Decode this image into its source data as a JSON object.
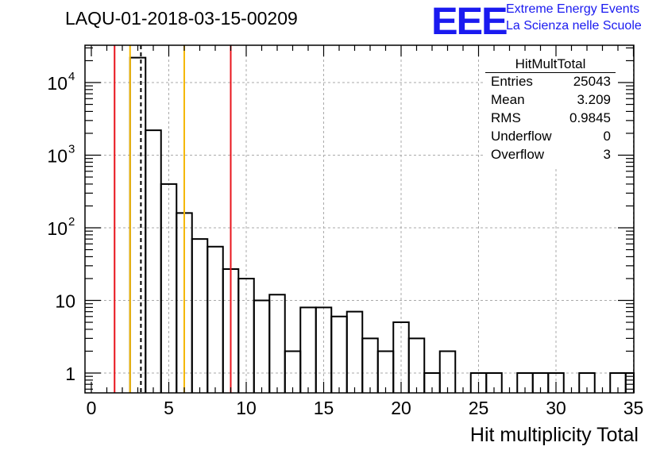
{
  "header": {
    "title": "LAQU-01-2018-03-15-00209"
  },
  "logo": {
    "mark": "EEE",
    "line1": "Extreme Energy Events",
    "line2": "La Scienza nelle Scuole"
  },
  "stats_box": {
    "title": "HitMultTotal",
    "rows": [
      {
        "key": "Entries",
        "value": "25043"
      },
      {
        "key": "Mean",
        "value": "3.209"
      },
      {
        "key": "RMS",
        "value": "0.9845"
      },
      {
        "key": "Underflow",
        "value": "0"
      },
      {
        "key": "Overflow",
        "value": "3"
      }
    ]
  },
  "colors": {
    "histogram": "#000000",
    "red_line": "#e8141c",
    "yellow_line": "#f5b800",
    "grid": "#aaaaaa",
    "logo": "#1a1af0"
  },
  "chart_data": {
    "type": "histogram",
    "title": "LAQU-01-2018-03-15-00209",
    "xlabel": "Hit multiplicity Total",
    "ylabel": "",
    "xlim": [
      0,
      35
    ],
    "ylog": true,
    "ylim": [
      0.5,
      40000
    ],
    "grid": true,
    "x_ticks": [
      0,
      5,
      10,
      15,
      20,
      25,
      30,
      35
    ],
    "y_ticks": [
      {
        "value": 1,
        "label": "1"
      },
      {
        "value": 10,
        "label": "10"
      },
      {
        "value": 100,
        "label": "10",
        "exp": "2"
      },
      {
        "value": 1000,
        "label": "10",
        "exp": "3"
      },
      {
        "value": 10000,
        "label": "10",
        "exp": "4"
      }
    ],
    "bins": [
      {
        "lo": 2.5,
        "hi": 3.5,
        "count": 22000
      },
      {
        "lo": 3.5,
        "hi": 4.5,
        "count": 2200
      },
      {
        "lo": 4.5,
        "hi": 5.5,
        "count": 400
      },
      {
        "lo": 5.5,
        "hi": 6.5,
        "count": 160
      },
      {
        "lo": 6.5,
        "hi": 7.5,
        "count": 70
      },
      {
        "lo": 7.5,
        "hi": 8.5,
        "count": 55
      },
      {
        "lo": 8.5,
        "hi": 9.5,
        "count": 27
      },
      {
        "lo": 9.5,
        "hi": 10.5,
        "count": 20
      },
      {
        "lo": 10.5,
        "hi": 11.5,
        "count": 10
      },
      {
        "lo": 11.5,
        "hi": 12.5,
        "count": 12
      },
      {
        "lo": 12.5,
        "hi": 13.5,
        "count": 2
      },
      {
        "lo": 13.5,
        "hi": 14.5,
        "count": 8
      },
      {
        "lo": 14.5,
        "hi": 15.5,
        "count": 8
      },
      {
        "lo": 15.5,
        "hi": 16.5,
        "count": 6
      },
      {
        "lo": 16.5,
        "hi": 17.5,
        "count": 7
      },
      {
        "lo": 17.5,
        "hi": 18.5,
        "count": 3
      },
      {
        "lo": 18.5,
        "hi": 19.5,
        "count": 2
      },
      {
        "lo": 19.5,
        "hi": 20.5,
        "count": 5
      },
      {
        "lo": 20.5,
        "hi": 21.5,
        "count": 3
      },
      {
        "lo": 21.5,
        "hi": 22.5,
        "count": 1
      },
      {
        "lo": 22.5,
        "hi": 23.5,
        "count": 2
      },
      {
        "lo": 24.5,
        "hi": 25.5,
        "count": 1
      },
      {
        "lo": 25.5,
        "hi": 26.5,
        "count": 1
      },
      {
        "lo": 27.5,
        "hi": 28.5,
        "count": 1
      },
      {
        "lo": 28.5,
        "hi": 29.5,
        "count": 1
      },
      {
        "lo": 29.5,
        "hi": 30.5,
        "count": 1
      },
      {
        "lo": 31.5,
        "hi": 32.5,
        "count": 1
      },
      {
        "lo": 33.5,
        "hi": 34.5,
        "count": 1
      },
      {
        "lo": 34.5,
        "hi": 35.5,
        "count": 1
      }
    ],
    "vertical_lines": [
      {
        "x": 1.5,
        "color": "red",
        "style": "solid"
      },
      {
        "x": 2.5,
        "color": "yellow",
        "style": "solid"
      },
      {
        "x": 3.2,
        "color": "black",
        "style": "dashed"
      },
      {
        "x": 6.0,
        "color": "yellow",
        "style": "solid"
      },
      {
        "x": 9.0,
        "color": "red",
        "style": "solid"
      }
    ]
  }
}
